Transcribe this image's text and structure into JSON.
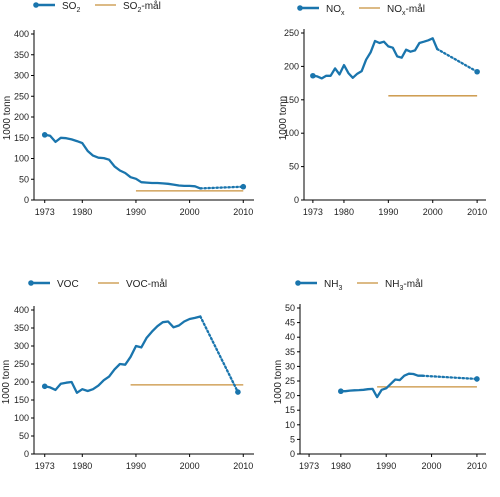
{
  "colors": {
    "series": "#1a75ad",
    "target": "#c8903c",
    "axis": "#000000"
  },
  "chart_data": [
    {
      "type": "line",
      "ylabel": "1000 tonn",
      "ylim": [
        0,
        400
      ],
      "yticks": [
        0,
        50,
        100,
        150,
        200,
        250,
        300,
        350,
        400
      ],
      "xlim": [
        1971,
        2012
      ],
      "xticks": [
        1973,
        1980,
        1990,
        2000,
        2010
      ],
      "legend": {
        "series_base": "SO",
        "series_sub": "2",
        "target_base": "SO",
        "target_sub": "2",
        "target_suffix": "-mål"
      },
      "series": {
        "x": [
          1973,
          1974,
          1975,
          1976,
          1977,
          1978,
          1979,
          1980,
          1981,
          1982,
          1983,
          1984,
          1985,
          1986,
          1987,
          1988,
          1989,
          1990,
          1991,
          1992,
          1993,
          1994,
          1995,
          1996,
          1997,
          1998,
          1999,
          2000,
          2001,
          2002
        ],
        "y": [
          157,
          155,
          140,
          150,
          149,
          146,
          142,
          137,
          118,
          107,
          102,
          101,
          97,
          81,
          71,
          65,
          55,
          51,
          43,
          42,
          41,
          41,
          40,
          39,
          37,
          35,
          34,
          34,
          33,
          28
        ]
      },
      "projection": {
        "x": [
          2002,
          2010
        ],
        "y": [
          28,
          32
        ]
      },
      "target": {
        "x": [
          1990,
          2010
        ],
        "y": 22
      }
    },
    {
      "type": "line",
      "ylabel": "1000 tonn",
      "ylim": [
        0,
        250
      ],
      "yticks": [
        0,
        50,
        100,
        150,
        200,
        250
      ],
      "xlim": [
        1971,
        2012
      ],
      "xticks": [
        1973,
        1980,
        1990,
        2000,
        2010
      ],
      "legend": {
        "series_base": "NO",
        "series_sub": "x",
        "target_base": "NO",
        "target_sub": "x",
        "target_suffix": "-mål"
      },
      "series": {
        "x": [
          1973,
          1974,
          1975,
          1976,
          1977,
          1978,
          1979,
          1980,
          1981,
          1982,
          1983,
          1984,
          1985,
          1986,
          1987,
          1988,
          1989,
          1990,
          1991,
          1992,
          1993,
          1994,
          1995,
          1996,
          1997,
          1998,
          1999,
          2000,
          2001
        ],
        "y": [
          186,
          185,
          182,
          186,
          186,
          197,
          188,
          202,
          190,
          183,
          189,
          193,
          210,
          221,
          238,
          235,
          237,
          230,
          228,
          215,
          213,
          225,
          222,
          224,
          235,
          237,
          239,
          242,
          226
        ]
      },
      "projection": {
        "x": [
          2001,
          2010
        ],
        "y": [
          226,
          192
        ]
      },
      "target": {
        "x": [
          1990,
          2010
        ],
        "y": 156
      }
    },
    {
      "type": "line",
      "ylabel": "1000 tonn",
      "ylim": [
        0,
        400
      ],
      "yticks": [
        0,
        50,
        100,
        150,
        200,
        250,
        300,
        350,
        400
      ],
      "xlim": [
        1971,
        2012
      ],
      "xticks": [
        1973,
        1980,
        1990,
        2000,
        2010
      ],
      "legend": {
        "series_base": "VOC",
        "series_sub": "",
        "target_base": "VOC",
        "target_sub": "",
        "target_suffix": "-mål"
      },
      "series": {
        "x": [
          1973,
          1974,
          1975,
          1976,
          1977,
          1978,
          1979,
          1980,
          1981,
          1982,
          1983,
          1984,
          1985,
          1986,
          1987,
          1988,
          1989,
          1990,
          1991,
          1992,
          1993,
          1994,
          1995,
          1996,
          1997,
          1998,
          1999,
          2000,
          2001,
          2002
        ],
        "y": [
          188,
          185,
          178,
          195,
          198,
          200,
          170,
          180,
          175,
          180,
          190,
          205,
          215,
          235,
          250,
          248,
          270,
          300,
          296,
          323,
          340,
          355,
          366,
          368,
          352,
          357,
          368,
          375,
          378,
          382
        ]
      },
      "projection": {
        "x": [
          2002,
          2009
        ],
        "y": [
          382,
          172
        ]
      },
      "target": {
        "x": [
          1989,
          2010
        ],
        "y": 192
      }
    },
    {
      "type": "line",
      "ylabel": "1000 tonn",
      "ylim": [
        0,
        50
      ],
      "yticks": [
        0,
        5,
        10,
        15,
        20,
        25,
        30,
        35,
        40,
        45,
        50
      ],
      "xlim": [
        1971,
        2012
      ],
      "xticks": [
        1973,
        1980,
        1990,
        2000,
        2010
      ],
      "legend": {
        "series_base": "NH",
        "series_sub": "3",
        "target_base": "NH",
        "target_sub": "3",
        "target_suffix": "-mål"
      },
      "series": {
        "x": [
          1980,
          1981,
          1982,
          1983,
          1984,
          1985,
          1986,
          1987,
          1988,
          1989,
          1990,
          1991,
          1992,
          1993,
          1994,
          1995,
          1996,
          1997,
          1998
        ],
        "y": [
          21.5,
          21.5,
          21.7,
          21.8,
          21.9,
          22,
          22.2,
          22.3,
          19.5,
          22,
          22.5,
          24,
          25.5,
          25.3,
          26.8,
          27.5,
          27.4,
          26.8,
          26.8
        ]
      },
      "projection": {
        "x": [
          1998,
          2010
        ],
        "y": [
          26.8,
          25.7
        ]
      },
      "target": {
        "x": [
          1988,
          2010
        ],
        "y": 23
      }
    }
  ]
}
